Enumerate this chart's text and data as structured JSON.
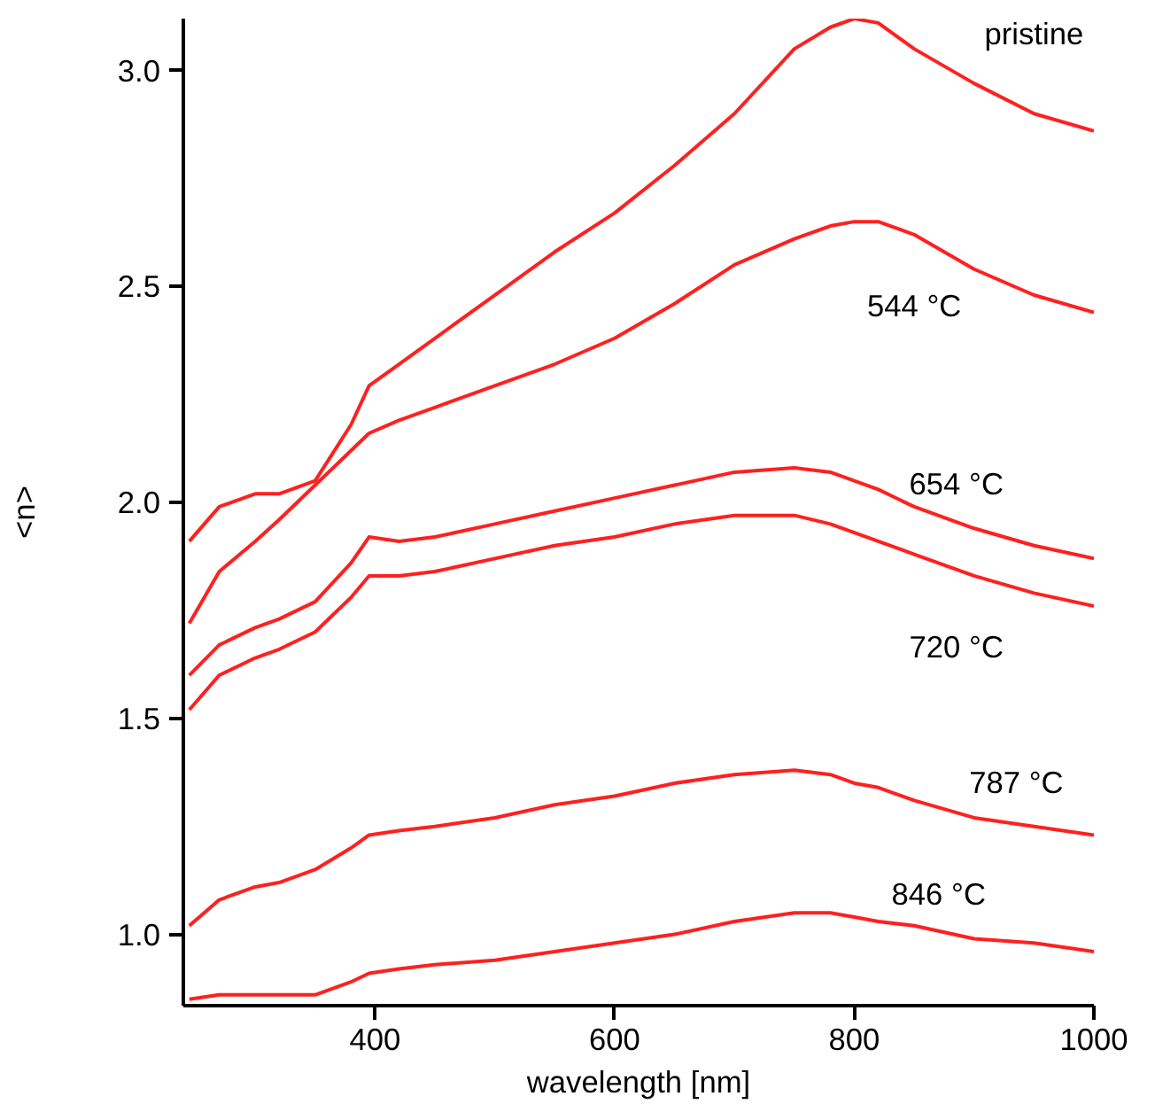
{
  "chart_data": {
    "type": "line",
    "xlabel": "wavelength [nm]",
    "ylabel": "<n>",
    "xlim": [
      240,
      1000
    ],
    "xticks": [
      400,
      600,
      800,
      1000
    ],
    "ylim": [
      0.835,
      3.12
    ],
    "yticks": [
      {
        "value": 1.0,
        "label": "1.0"
      },
      {
        "value": 1.5,
        "label": "1.5"
      },
      {
        "value": 2.0,
        "label": "2.0"
      },
      {
        "value": 2.5,
        "label": "2.5"
      },
      {
        "value": 3.0,
        "label": "3.0"
      }
    ],
    "grid": false,
    "marker": "none",
    "line_style": "solid",
    "x": [
      245,
      270,
      300,
      320,
      350,
      380,
      395,
      420,
      450,
      500,
      550,
      600,
      650,
      700,
      750,
      780,
      800,
      820,
      850,
      900,
      950,
      1000
    ],
    "series": [
      {
        "name": "pristine",
        "color": "#ff2020",
        "values": [
          1.91,
          1.99,
          2.02,
          2.02,
          2.05,
          2.18,
          2.27,
          2.32,
          2.38,
          2.48,
          2.58,
          2.67,
          2.78,
          2.9,
          3.05,
          3.1,
          3.12,
          3.11,
          3.05,
          2.97,
          2.9,
          2.86
        ]
      },
      {
        "name": "544 °C",
        "color": "#ff2020",
        "values": [
          1.72,
          1.84,
          1.91,
          1.96,
          2.04,
          2.12,
          2.16,
          2.19,
          2.22,
          2.27,
          2.32,
          2.38,
          2.46,
          2.55,
          2.61,
          2.64,
          2.65,
          2.65,
          2.62,
          2.54,
          2.48,
          2.44
        ]
      },
      {
        "name": "654 °C",
        "color": "#ff2020",
        "values": [
          1.6,
          1.67,
          1.71,
          1.73,
          1.77,
          1.86,
          1.92,
          1.91,
          1.92,
          1.95,
          1.98,
          2.01,
          2.04,
          2.07,
          2.08,
          2.07,
          2.05,
          2.03,
          1.99,
          1.94,
          1.9,
          1.87
        ]
      },
      {
        "name": "720 °C",
        "color": "#ff2020",
        "values": [
          1.52,
          1.6,
          1.64,
          1.66,
          1.7,
          1.78,
          1.83,
          1.83,
          1.84,
          1.87,
          1.9,
          1.92,
          1.95,
          1.97,
          1.97,
          1.95,
          1.93,
          1.91,
          1.88,
          1.83,
          1.79,
          1.76
        ]
      },
      {
        "name": "787 °C",
        "color": "#ff2020",
        "values": [
          1.02,
          1.08,
          1.11,
          1.12,
          1.15,
          1.2,
          1.23,
          1.24,
          1.25,
          1.27,
          1.3,
          1.32,
          1.35,
          1.37,
          1.38,
          1.37,
          1.35,
          1.34,
          1.31,
          1.27,
          1.25,
          1.23
        ]
      },
      {
        "name": "846 °C",
        "color": "#ff2020",
        "values": [
          0.85,
          0.86,
          0.86,
          0.86,
          0.86,
          0.89,
          0.91,
          0.92,
          0.93,
          0.94,
          0.96,
          0.98,
          1.0,
          1.03,
          1.05,
          1.05,
          1.04,
          1.03,
          1.02,
          0.99,
          0.98,
          0.96
        ]
      }
    ]
  }
}
